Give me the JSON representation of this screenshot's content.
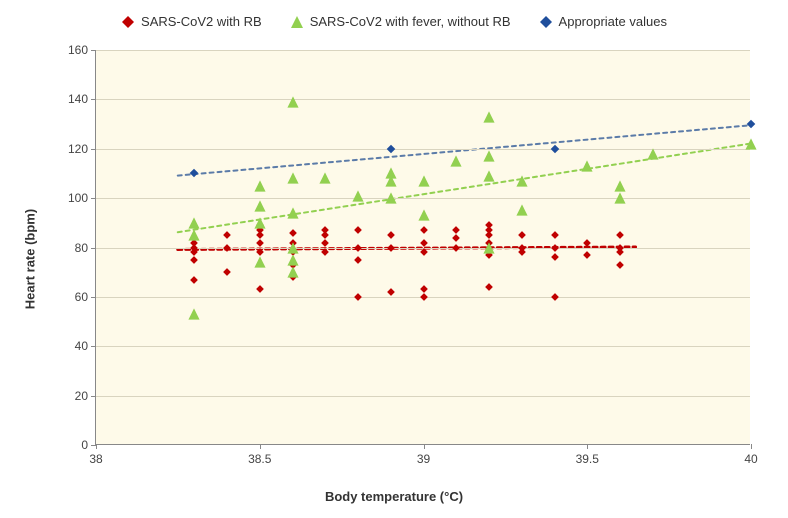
{
  "legend": {
    "items": [
      {
        "label": "SARS-CoV2 with RB",
        "shape": "diamond",
        "color": "#c00000"
      },
      {
        "label": "SARS-CoV2 with fever, without RB",
        "shape": "triangle",
        "color": "#92d050"
      },
      {
        "label": "Appropriate values",
        "shape": "diamond",
        "color": "#1f4e9c"
      }
    ]
  },
  "chart": {
    "type": "scatter",
    "xlabel": "Body temperature (°C)",
    "ylabel": "Heart rate (bpm)",
    "xlim": [
      38,
      40
    ],
    "ylim": [
      0,
      160
    ],
    "xtick_step": 0.5,
    "ytick_step": 20,
    "plot_background": "#fefae9",
    "grid_color": "#d9d4bf",
    "axis_color": "#888888",
    "label_fontsize": 13,
    "tick_fontsize": 12,
    "series": [
      {
        "name": "rb",
        "shape": "diamond",
        "color": "#c00000",
        "size": 9,
        "points": [
          [
            38.3,
            67
          ],
          [
            38.3,
            75
          ],
          [
            38.3,
            78
          ],
          [
            38.3,
            80
          ],
          [
            38.3,
            82
          ],
          [
            38.3,
            84
          ],
          [
            38.4,
            70
          ],
          [
            38.4,
            80
          ],
          [
            38.4,
            85
          ],
          [
            38.5,
            63
          ],
          [
            38.5,
            78
          ],
          [
            38.5,
            82
          ],
          [
            38.5,
            85
          ],
          [
            38.5,
            87
          ],
          [
            38.5,
            89
          ],
          [
            38.6,
            68
          ],
          [
            38.6,
            73
          ],
          [
            38.6,
            78
          ],
          [
            38.6,
            82
          ],
          [
            38.6,
            86
          ],
          [
            38.7,
            78
          ],
          [
            38.7,
            82
          ],
          [
            38.7,
            85
          ],
          [
            38.7,
            87
          ],
          [
            38.8,
            60
          ],
          [
            38.8,
            75
          ],
          [
            38.8,
            80
          ],
          [
            38.8,
            87
          ],
          [
            38.9,
            62
          ],
          [
            38.9,
            80
          ],
          [
            38.9,
            85
          ],
          [
            39.0,
            60
          ],
          [
            39.0,
            63
          ],
          [
            39.0,
            78
          ],
          [
            39.0,
            82
          ],
          [
            39.0,
            87
          ],
          [
            39.1,
            80
          ],
          [
            39.1,
            84
          ],
          [
            39.1,
            87
          ],
          [
            39.2,
            64
          ],
          [
            39.2,
            77
          ],
          [
            39.2,
            80
          ],
          [
            39.2,
            82
          ],
          [
            39.2,
            85
          ],
          [
            39.2,
            87
          ],
          [
            39.2,
            89
          ],
          [
            39.3,
            78
          ],
          [
            39.3,
            80
          ],
          [
            39.3,
            85
          ],
          [
            39.4,
            60
          ],
          [
            39.4,
            76
          ],
          [
            39.4,
            80
          ],
          [
            39.4,
            85
          ],
          [
            39.5,
            77
          ],
          [
            39.5,
            82
          ],
          [
            39.6,
            73
          ],
          [
            39.6,
            78
          ],
          [
            39.6,
            80
          ],
          [
            39.6,
            85
          ]
        ]
      },
      {
        "name": "fever-no-rb",
        "shape": "triangle",
        "color": "#92d050",
        "size": 13,
        "points": [
          [
            38.3,
            53
          ],
          [
            38.3,
            85
          ],
          [
            38.3,
            90
          ],
          [
            38.5,
            74
          ],
          [
            38.5,
            90
          ],
          [
            38.5,
            97
          ],
          [
            38.5,
            105
          ],
          [
            38.6,
            70
          ],
          [
            38.6,
            75
          ],
          [
            38.6,
            80
          ],
          [
            38.6,
            94
          ],
          [
            38.6,
            108
          ],
          [
            38.6,
            139
          ],
          [
            38.7,
            108
          ],
          [
            38.8,
            101
          ],
          [
            38.9,
            100
          ],
          [
            38.9,
            107
          ],
          [
            38.9,
            110
          ],
          [
            39.0,
            93
          ],
          [
            39.0,
            107
          ],
          [
            39.1,
            115
          ],
          [
            39.2,
            80
          ],
          [
            39.2,
            109
          ],
          [
            39.2,
            117
          ],
          [
            39.2,
            133
          ],
          [
            39.3,
            95
          ],
          [
            39.3,
            107
          ],
          [
            39.5,
            113
          ],
          [
            39.6,
            100
          ],
          [
            39.6,
            105
          ],
          [
            39.7,
            118
          ],
          [
            40.0,
            122
          ]
        ]
      },
      {
        "name": "appropriate",
        "shape": "diamond",
        "color": "#1f4e9c",
        "size": 10,
        "points": [
          [
            38.3,
            110
          ],
          [
            38.9,
            120
          ],
          [
            39.4,
            120
          ],
          [
            40.0,
            130
          ]
        ]
      }
    ],
    "trendlines": [
      {
        "name": "rb-trend",
        "color": "#c00000",
        "dash": "4 4",
        "width": 3,
        "p1": [
          38.25,
          79
        ],
        "p2": [
          39.65,
          80
        ]
      },
      {
        "name": "fever-trend",
        "color": "#92d050",
        "dash": "4 4",
        "width": 2,
        "p1": [
          38.25,
          86
        ],
        "p2": [
          40.05,
          123
        ]
      },
      {
        "name": "appropriate-trend",
        "color": "#5b7ba8",
        "dash": "4 4",
        "width": 2,
        "p1": [
          38.25,
          109
        ],
        "p2": [
          40.05,
          130
        ]
      }
    ]
  }
}
